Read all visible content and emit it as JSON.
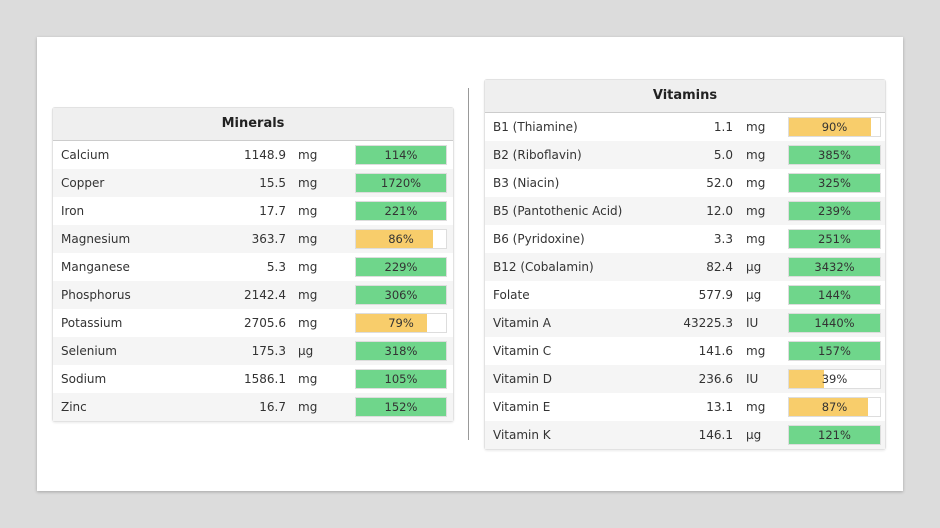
{
  "tables": [
    {
      "title": "Minerals",
      "rows": [
        {
          "name": "Calcium",
          "amount": "1148.9",
          "unit": "mg",
          "percent": "114%"
        },
        {
          "name": "Copper",
          "amount": "15.5",
          "unit": "mg",
          "percent": "1720%"
        },
        {
          "name": "Iron",
          "amount": "17.7",
          "unit": "mg",
          "percent": "221%"
        },
        {
          "name": "Magnesium",
          "amount": "363.7",
          "unit": "mg",
          "percent": "86%"
        },
        {
          "name": "Manganese",
          "amount": "5.3",
          "unit": "mg",
          "percent": "229%"
        },
        {
          "name": "Phosphorus",
          "amount": "2142.4",
          "unit": "mg",
          "percent": "306%"
        },
        {
          "name": "Potassium",
          "amount": "2705.6",
          "unit": "mg",
          "percent": "79%"
        },
        {
          "name": "Selenium",
          "amount": "175.3",
          "unit": "µg",
          "percent": "318%"
        },
        {
          "name": "Sodium",
          "amount": "1586.1",
          "unit": "mg",
          "percent": "105%"
        },
        {
          "name": "Zinc",
          "amount": "16.7",
          "unit": "mg",
          "percent": "152%"
        }
      ]
    },
    {
      "title": "Vitamins",
      "rows": [
        {
          "name": "B1 (Thiamine)",
          "amount": "1.1",
          "unit": "mg",
          "percent": "90%"
        },
        {
          "name": "B2 (Riboflavin)",
          "amount": "5.0",
          "unit": "mg",
          "percent": "385%"
        },
        {
          "name": "B3 (Niacin)",
          "amount": "52.0",
          "unit": "mg",
          "percent": "325%"
        },
        {
          "name": "B5 (Pantothenic Acid)",
          "amount": "12.0",
          "unit": "mg",
          "percent": "239%"
        },
        {
          "name": "B6 (Pyridoxine)",
          "amount": "3.3",
          "unit": "mg",
          "percent": "251%"
        },
        {
          "name": "B12 (Cobalamin)",
          "amount": "82.4",
          "unit": "µg",
          "percent": "3432%"
        },
        {
          "name": "Folate",
          "amount": "577.9",
          "unit": "µg",
          "percent": "144%"
        },
        {
          "name": "Vitamin A",
          "amount": "43225.3",
          "unit": "IU",
          "percent": "1440%"
        },
        {
          "name": "Vitamin C",
          "amount": "141.6",
          "unit": "mg",
          "percent": "157%"
        },
        {
          "name": "Vitamin D",
          "amount": "236.6",
          "unit": "IU",
          "percent": "39%"
        },
        {
          "name": "Vitamin E",
          "amount": "13.1",
          "unit": "mg",
          "percent": "87%"
        },
        {
          "name": "Vitamin K",
          "amount": "146.1",
          "unit": "µg",
          "percent": "121%"
        }
      ]
    }
  ]
}
